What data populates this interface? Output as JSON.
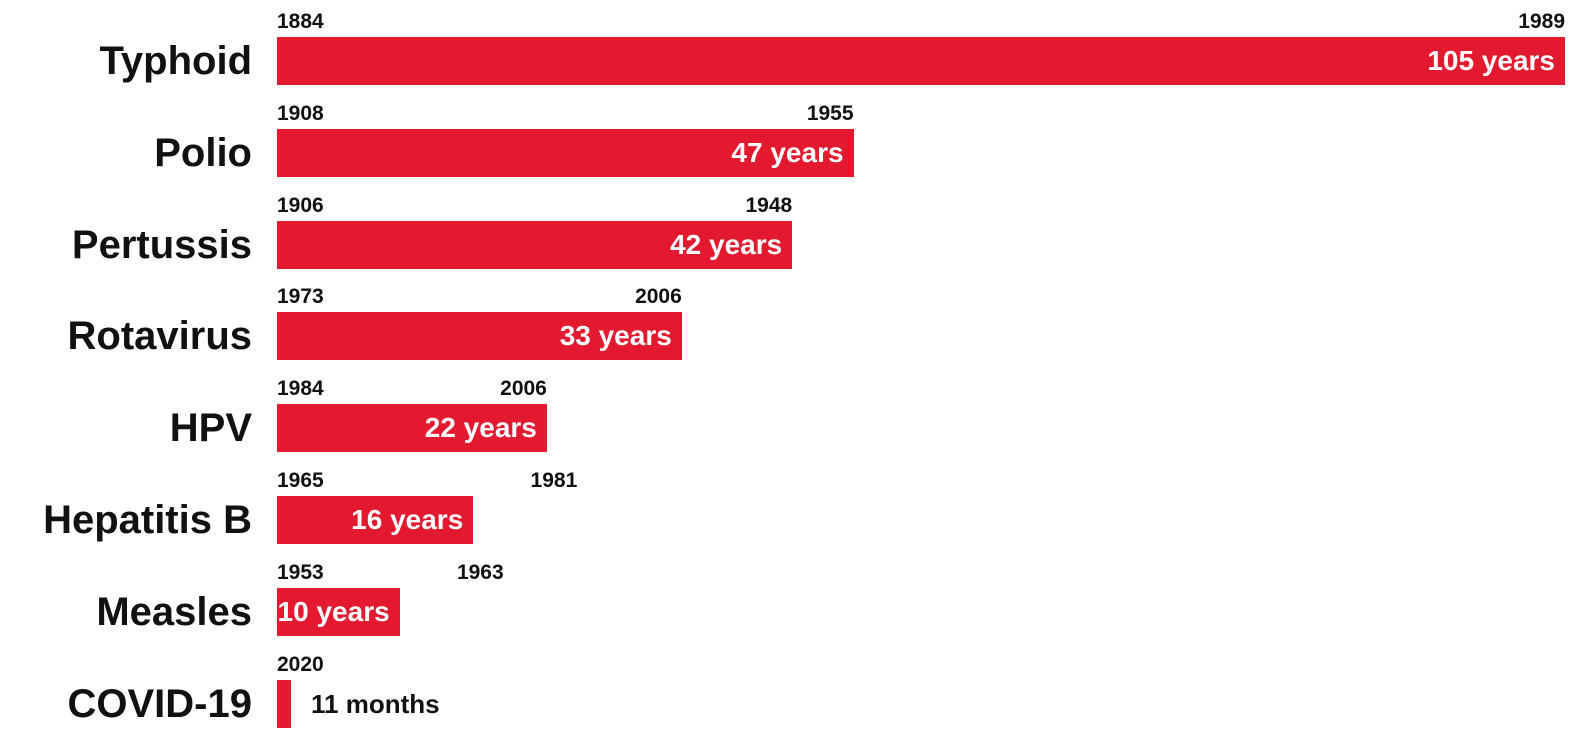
{
  "colors": {
    "bar": "#e3192f",
    "text": "#111111",
    "bar_label": "#ffffff"
  },
  "chart_data": {
    "type": "bar",
    "orientation": "horizontal",
    "categories": [
      "Typhoid",
      "Polio",
      "Pertussis",
      "Rotavirus",
      "HPV",
      "Hepatitis B",
      "Measles",
      "COVID-19"
    ],
    "values": [
      105,
      47,
      42,
      33,
      22,
      16,
      10,
      0.9167
    ],
    "start_labels": [
      "1884",
      "1908",
      "1906",
      "1973",
      "1984",
      "1965",
      "1953",
      "2020"
    ],
    "end_labels": [
      "1989",
      "1955",
      "1948",
      "2006",
      "2006",
      "1981",
      "1963",
      ""
    ],
    "duration_labels": [
      "105 years",
      "47 years",
      "42 years",
      "33 years",
      "22 years",
      "16 years",
      "10 years",
      "11 months"
    ],
    "unit": "years",
    "xlim": [
      0,
      105
    ],
    "grid": false,
    "legend": "none",
    "title": "",
    "xlabel": "",
    "ylabel": ""
  }
}
